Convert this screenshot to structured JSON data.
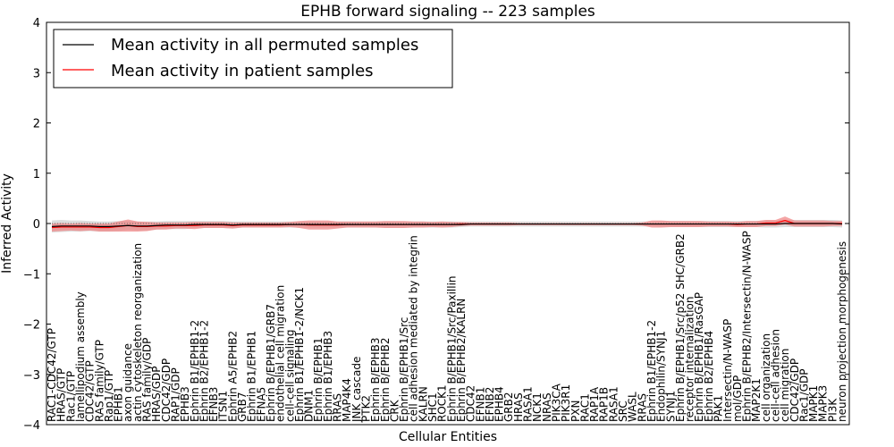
{
  "chart_data": {
    "type": "line",
    "title": "EPHB forward signaling -- 223 samples",
    "xlabel": "Cellular Entities",
    "ylabel": "Inferred Activity",
    "ylim": [
      -4,
      4
    ],
    "yticks": [
      -4,
      -3,
      -2,
      -1,
      0,
      1,
      2,
      3,
      4
    ],
    "grid": false,
    "legend_position": "top-left",
    "categories": [
      "RAC1-CDC42/GTP",
      "HRAS/GTP",
      "Rac1/GTP",
      "lamellipodium assembly",
      "CDC42/GTP",
      "RAS family/GTP",
      "Rap1/GTP",
      "EPHB1",
      "axon guidance",
      "actin cytoskeleton reorganization",
      "RAS family/GDP",
      "HRAS/GDP",
      "CDC42/GDP",
      "RAP1/GDP",
      "EPHB3",
      "Ephrin B1/EPHB1-2",
      "Ephrin B2/EPHB1-2",
      "EFNB3",
      "ITSN1",
      "Ephrin A5/EPHB2",
      "GRB7",
      "Ephrin B1/EPHB1",
      "EFNA5",
      "Ephrin B/EPHB1/GRB7",
      "endothelial cell migration",
      "cell-cell signaling",
      "Ephrin B1/EPHB1-2/NCK1",
      "DNM1",
      "Ephrin B/EPHB1",
      "Ephrin B1/EPHB3",
      "RRAS",
      "MAP4K4",
      "JNK cascade",
      "PTK2",
      "Ephrin B/EPHB3",
      "Ephrin B/EPHB2",
      "CRK",
      "Ephrin B/EPHB1/Src",
      "cell adhesion mediated by integrin",
      "KALRN",
      "SHC1",
      "ROCK1",
      "Ephrin B/EPHB1/Src/Paxillin",
      "Ephrin B/EPHB2/KALRN",
      "CDC42",
      "EFNB1",
      "EFNB2",
      "EPHB4",
      "GRB2",
      "HRAS",
      "RASA1",
      "NCK1",
      "NRAS",
      "PIK3CA",
      "PIK3R1",
      "PXN",
      "RAC1",
      "RAP1A",
      "RAP1B",
      "RASA1",
      "SRC",
      "WASL",
      "RRAS",
      "Ephrin B1/EPHB1-2",
      "Endophilin/SYNJ1",
      "SYNJ1",
      "Ephrin B/EPHB1/Src/p52 SHC/GRB2",
      "receptor internalization",
      "Ephrin B/EPHB1/RasGAP",
      "Ephrin B2/EPHB4",
      "PAK1",
      "Intersectin/N-WASP",
      "mol/GDP",
      "Ephrin B/EPHB2/Intersectin/N-WASP",
      "MAP2K1",
      "cell organization",
      "cell-cell adhesion",
      "cell migration",
      "CDC42/GDP",
      "Rac1/GDP",
      "MAPK1",
      "MAPK3",
      "PI3K",
      "neuron projection morphogenesis"
    ],
    "series": [
      {
        "name": "Mean activity in all permuted samples",
        "color": "#000000",
        "band_color": "#c0c0c0",
        "values": [
          -0.06,
          -0.05,
          -0.05,
          -0.05,
          -0.05,
          -0.06,
          -0.06,
          -0.05,
          -0.04,
          -0.05,
          -0.05,
          -0.04,
          -0.03,
          -0.03,
          -0.03,
          -0.02,
          -0.02,
          -0.02,
          -0.02,
          -0.03,
          -0.02,
          -0.02,
          -0.02,
          -0.02,
          -0.02,
          -0.02,
          -0.02,
          -0.02,
          -0.02,
          -0.02,
          -0.02,
          -0.02,
          -0.02,
          -0.02,
          -0.02,
          -0.02,
          -0.02,
          -0.02,
          -0.02,
          -0.02,
          -0.02,
          -0.02,
          -0.02,
          -0.02,
          -0.01,
          -0.01,
          -0.01,
          -0.01,
          -0.01,
          -0.01,
          -0.01,
          -0.01,
          -0.01,
          -0.01,
          -0.01,
          -0.01,
          -0.01,
          -0.01,
          -0.01,
          -0.01,
          -0.01,
          -0.01,
          -0.01,
          -0.01,
          -0.01,
          -0.01,
          -0.01,
          -0.01,
          -0.01,
          -0.01,
          -0.01,
          -0.01,
          -0.01,
          -0.01,
          -0.01,
          -0.01,
          -0.01,
          0.0,
          0.0,
          0.0,
          0.0,
          0.0,
          0.0,
          -0.01
        ],
        "band": [
          0.12,
          0.12,
          0.11,
          0.11,
          0.1,
          0.1,
          0.1,
          0.1,
          0.09,
          0.09,
          0.09,
          0.08,
          0.08,
          0.08,
          0.08,
          0.07,
          0.07,
          0.07,
          0.07,
          0.07,
          0.06,
          0.06,
          0.06,
          0.06,
          0.06,
          0.06,
          0.06,
          0.06,
          0.06,
          0.06,
          0.06,
          0.06,
          0.06,
          0.06,
          0.06,
          0.06,
          0.06,
          0.06,
          0.06,
          0.06,
          0.06,
          0.06,
          0.06,
          0.05,
          0.05,
          0.05,
          0.05,
          0.05,
          0.05,
          0.05,
          0.05,
          0.05,
          0.05,
          0.05,
          0.05,
          0.05,
          0.05,
          0.05,
          0.05,
          0.05,
          0.05,
          0.05,
          0.05,
          0.05,
          0.06,
          0.06,
          0.06,
          0.06,
          0.06,
          0.06,
          0.06,
          0.06,
          0.06,
          0.06,
          0.06,
          0.07,
          0.07,
          0.07,
          0.07,
          0.07,
          0.07,
          0.07,
          0.07,
          0.07
        ]
      },
      {
        "name": "Mean activity in patient samples",
        "color": "#ff0000",
        "band_color": "#f08080",
        "values": [
          -0.08,
          -0.07,
          -0.07,
          -0.07,
          -0.07,
          -0.08,
          -0.08,
          -0.06,
          -0.04,
          -0.06,
          -0.06,
          -0.05,
          -0.05,
          -0.04,
          -0.04,
          -0.04,
          -0.03,
          -0.03,
          -0.03,
          -0.04,
          -0.03,
          -0.03,
          -0.03,
          -0.03,
          -0.03,
          -0.02,
          -0.02,
          -0.03,
          -0.03,
          -0.03,
          -0.03,
          -0.02,
          -0.02,
          -0.02,
          -0.02,
          -0.02,
          -0.02,
          -0.02,
          -0.02,
          -0.02,
          -0.02,
          -0.02,
          -0.02,
          -0.01,
          -0.01,
          -0.01,
          -0.01,
          -0.01,
          -0.01,
          -0.01,
          -0.01,
          -0.01,
          -0.01,
          -0.01,
          -0.01,
          -0.01,
          -0.01,
          -0.01,
          -0.01,
          -0.01,
          -0.01,
          -0.01,
          -0.01,
          -0.01,
          -0.01,
          -0.01,
          -0.01,
          -0.01,
          -0.01,
          -0.01,
          -0.01,
          -0.01,
          -0.02,
          -0.01,
          -0.01,
          0.01,
          0.01,
          0.06,
          0.0,
          0.0,
          0.0,
          0.0,
          0.0,
          0.0
        ],
        "band": [
          0.08,
          0.08,
          0.07,
          0.08,
          0.07,
          0.08,
          0.08,
          0.1,
          0.12,
          0.1,
          0.09,
          0.07,
          0.07,
          0.06,
          0.06,
          0.07,
          0.06,
          0.06,
          0.06,
          0.06,
          0.05,
          0.05,
          0.05,
          0.05,
          0.05,
          0.05,
          0.07,
          0.09,
          0.09,
          0.09,
          0.07,
          0.06,
          0.06,
          0.06,
          0.06,
          0.07,
          0.07,
          0.07,
          0.06,
          0.06,
          0.05,
          0.06,
          0.05,
          0.04,
          0.03,
          0.03,
          0.03,
          0.03,
          0.03,
          0.02,
          0.02,
          0.02,
          0.02,
          0.02,
          0.02,
          0.02,
          0.02,
          0.02,
          0.02,
          0.02,
          0.02,
          0.02,
          0.03,
          0.07,
          0.07,
          0.06,
          0.06,
          0.06,
          0.06,
          0.05,
          0.05,
          0.05,
          0.05,
          0.06,
          0.06,
          0.06,
          0.06,
          0.08,
          0.06,
          0.06,
          0.06,
          0.06,
          0.05,
          0.05
        ]
      }
    ]
  }
}
